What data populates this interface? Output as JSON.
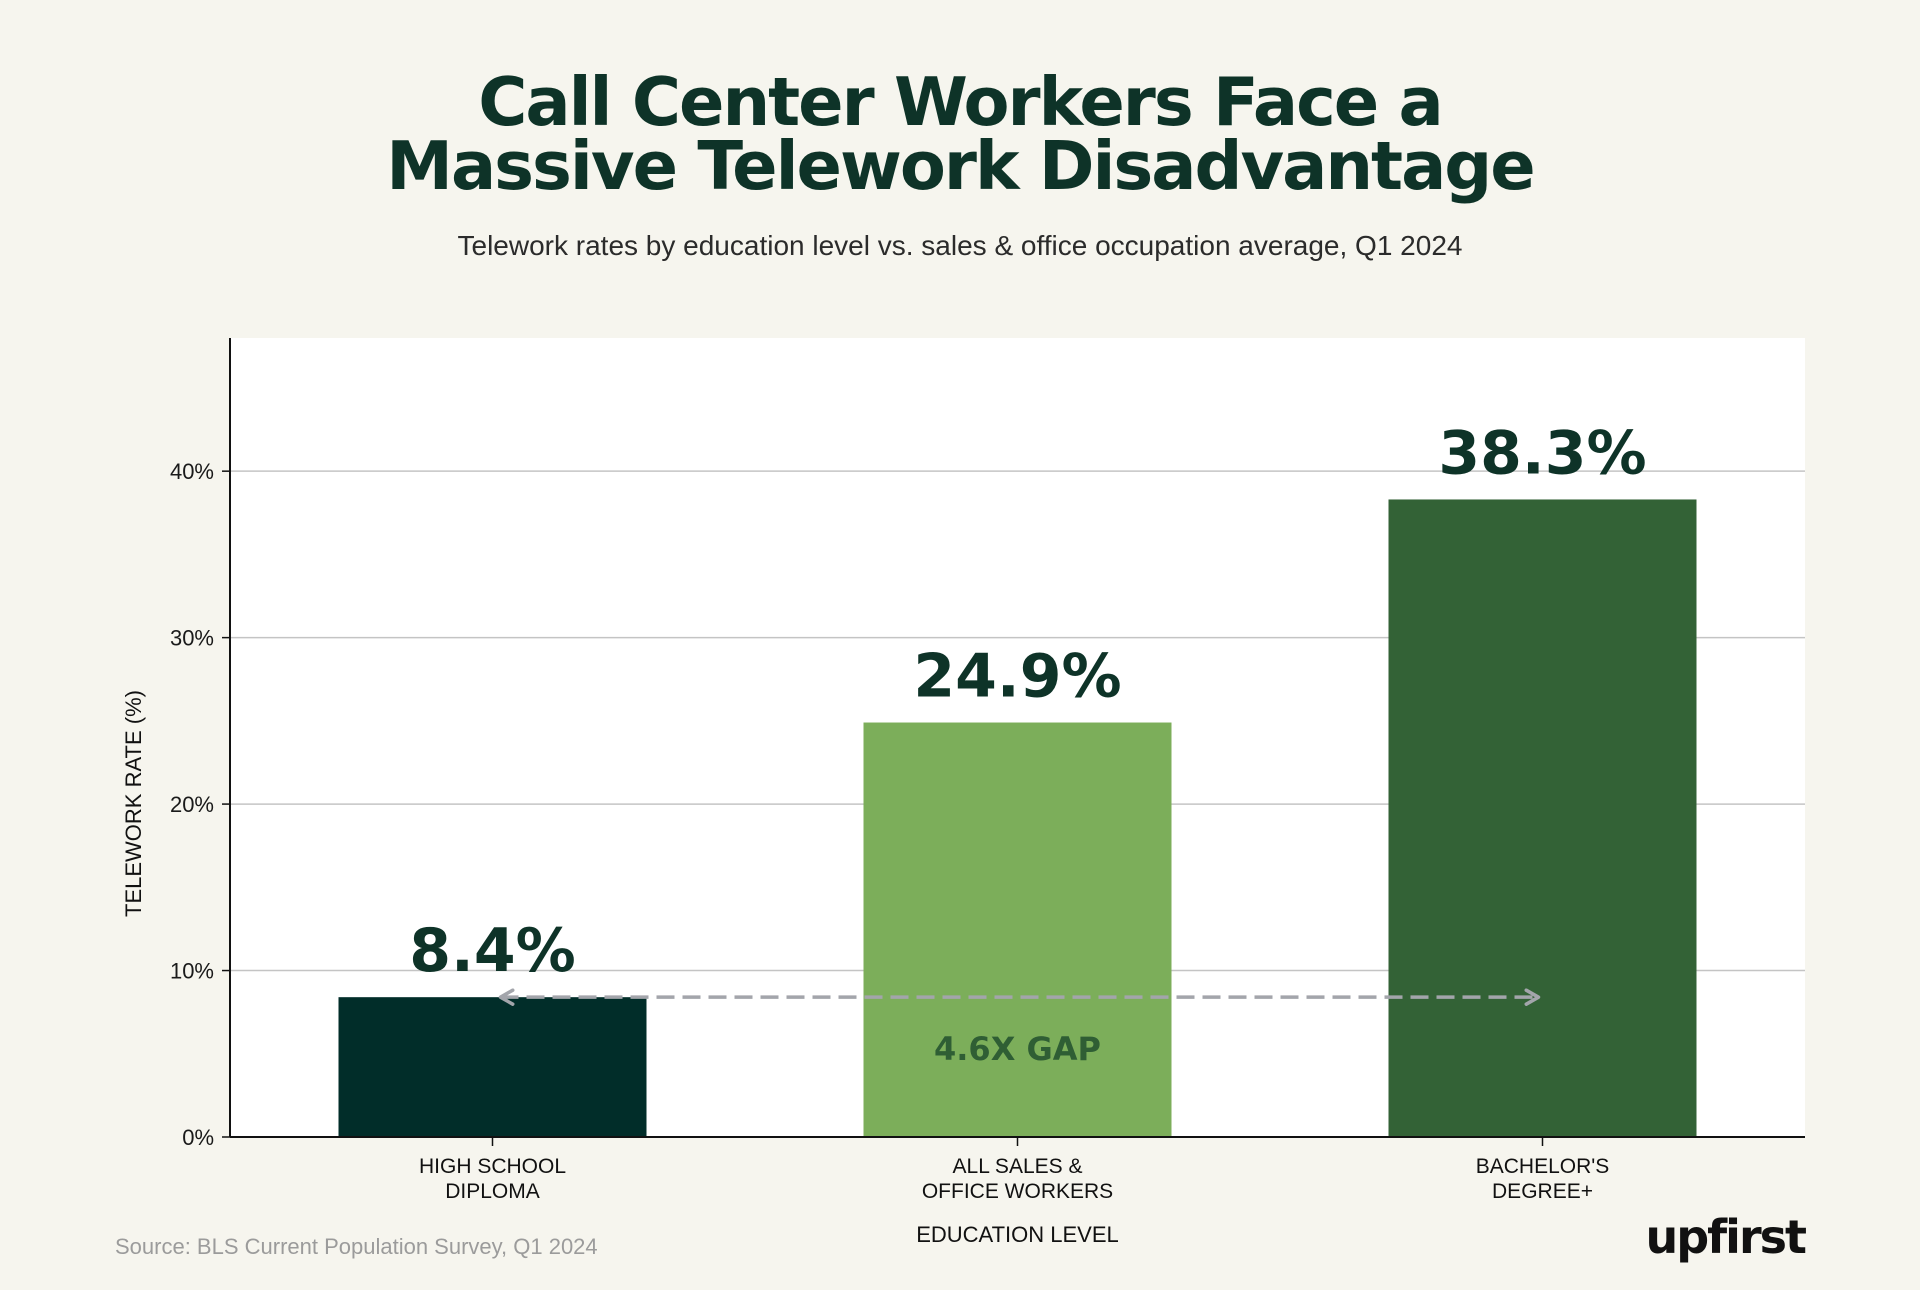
{
  "header": {
    "title_line1": "Call Center Workers Face a",
    "title_line2": "Massive Telework Disadvantage",
    "subtitle": "Telework rates by education level vs. sales & office occupation average, Q1 2024"
  },
  "footer": {
    "source": "Source: BLS Current Population Survey, Q1 2024",
    "logo": "upfirst"
  },
  "chart_data": {
    "type": "bar",
    "categories": [
      [
        "HIGH SCHOOL",
        "DIPLOMA"
      ],
      [
        "ALL SALES &",
        "OFFICE WORKERS"
      ],
      [
        "BACHELOR'S",
        "DEGREE+"
      ]
    ],
    "values": [
      8.4,
      24.9,
      38.3
    ],
    "value_labels": [
      "8.4%",
      "24.9%",
      "38.3%"
    ],
    "bar_colors": [
      "#012d29",
      "#7cae5a",
      "#336236"
    ],
    "xlabel": "EDUCATION LEVEL",
    "ylabel": "TELEWORK RATE (%)",
    "ylim": [
      0,
      48
    ],
    "yticks": [
      0,
      10,
      20,
      30,
      40
    ],
    "ytick_labels": [
      "0%",
      "10%",
      "20%",
      "30%",
      "40%"
    ],
    "grid": true,
    "annotation": {
      "text": "4.6X GAP",
      "from_category": 0,
      "to_category": 2,
      "at_value": 8.4,
      "style": "dashed-double-arrow",
      "color": "#a3a5ab"
    }
  }
}
